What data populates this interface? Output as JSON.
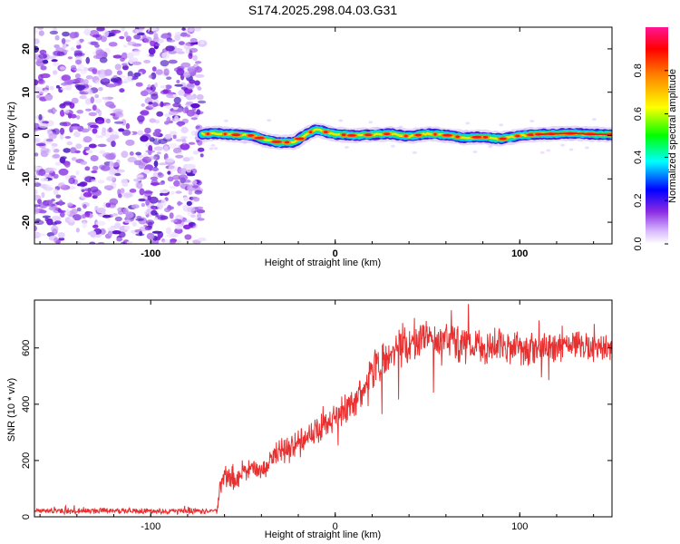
{
  "figure_title": "S174.2025.298.04.03.G31",
  "chart_data": [
    {
      "type": "heatmap",
      "title": "S174.2025.298.04.03.G31",
      "xlabel": "Height of straight line (km)",
      "ylabel": "Frequency (Hz)",
      "xlim": [
        -163,
        150
      ],
      "ylim": [
        -25,
        25
      ],
      "xticks": [
        -100,
        0,
        100
      ],
      "yticks": [
        -20,
        -10,
        0,
        10,
        20
      ],
      "grid": false,
      "noise_region_x": [
        -163,
        -72
      ],
      "ridge": {
        "x": [
          -72,
          -65,
          -55,
          -45,
          -38,
          -30,
          -22,
          -15,
          -10,
          -5,
          0,
          10,
          20,
          30,
          40,
          50,
          60,
          70,
          80,
          90,
          100,
          110,
          120,
          130,
          140,
          150
        ],
        "y": [
          0.3,
          0.5,
          0.2,
          0.0,
          -1.0,
          -1.6,
          -1.5,
          0.5,
          1.4,
          0.8,
          0.3,
          0.0,
          0.2,
          0.4,
          -0.2,
          0.4,
          0.1,
          -0.5,
          -0.3,
          -0.8,
          0.0,
          0.3,
          0.4,
          0.5,
          0.3,
          0.2
        ]
      },
      "colorbar": {
        "label": "Normalized spectral amplitude",
        "range": [
          0,
          1
        ],
        "ticks": [
          "0.0",
          "0.2",
          "0.4",
          "0.6",
          "0.8"
        ],
        "colors": [
          "#ffffff",
          "#8a2be2",
          "#0000ff",
          "#00ffff",
          "#00ff00",
          "#ffff00",
          "#ff8000",
          "#ff0000",
          "#ff1493"
        ]
      }
    },
    {
      "type": "line",
      "xlabel": "Height of straight line (km)",
      "ylabel": "SNR (10 * v/v)",
      "xlim": [
        -163,
        150
      ],
      "ylim": [
        0,
        770
      ],
      "xticks": [
        -100,
        0,
        100
      ],
      "yticks": [
        0,
        200,
        400,
        600
      ],
      "color": "#e83030",
      "series": [
        {
          "name": "SNR",
          "x": [
            -163,
            -140,
            -120,
            -100,
            -80,
            -64,
            -62,
            -60,
            -55,
            -50,
            -45,
            -40,
            -35,
            -30,
            -25,
            -20,
            -15,
            -10,
            -5,
            0,
            5,
            10,
            15,
            20,
            25,
            30,
            35,
            40,
            50,
            60,
            70,
            80,
            90,
            100,
            110,
            120,
            130,
            140,
            150
          ],
          "y": [
            20,
            20,
            22,
            20,
            20,
            20,
            120,
            150,
            120,
            150,
            180,
            170,
            190,
            230,
            240,
            260,
            290,
            300,
            330,
            350,
            380,
            410,
            450,
            520,
            550,
            580,
            600,
            610,
            630,
            620,
            610,
            600,
            610,
            600,
            590,
            600,
            610,
            600,
            600
          ],
          "noise_amplitude": [
            12,
            12,
            12,
            12,
            12,
            12,
            50,
            55,
            60,
            60,
            60,
            60,
            60,
            60,
            60,
            60,
            60,
            60,
            55,
            55,
            60,
            70,
            70,
            80,
            80,
            80,
            80,
            85,
            90,
            90,
            80,
            70,
            70,
            65,
            65,
            65,
            60,
            60,
            60
          ]
        }
      ]
    }
  ]
}
